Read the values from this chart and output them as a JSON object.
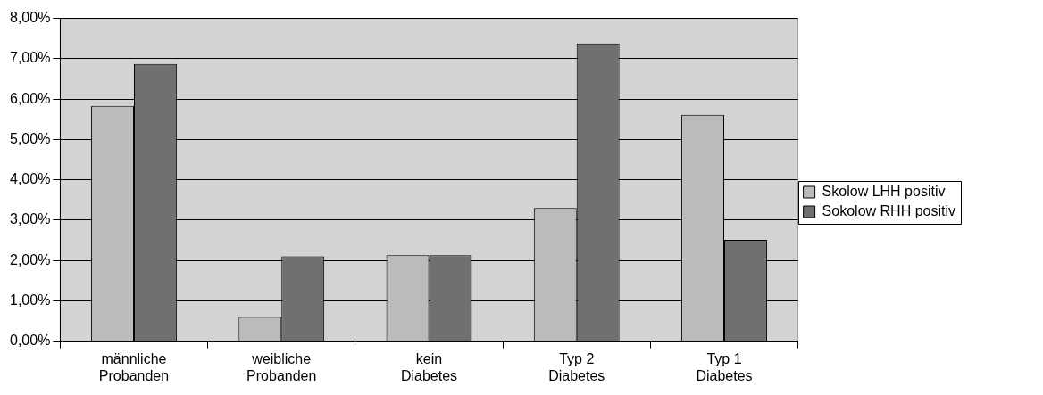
{
  "chart_data": {
    "type": "bar",
    "categories": [
      "männliche Probanden",
      "weibliche Probanden",
      "kein Diabetes",
      "Typ 2 Diabetes",
      "Typ 1 Diabetes"
    ],
    "series": [
      {
        "name": "Skolow LHH positiv",
        "color": "#bbbbbb",
        "values": [
          5.83,
          0.6,
          2.13,
          3.3,
          5.61
        ]
      },
      {
        "name": "Sokolow RHH positiv",
        "color": "#707070",
        "values": [
          6.87,
          2.1,
          2.13,
          7.38,
          2.51
        ]
      }
    ],
    "ylim": [
      0,
      8
    ],
    "yticks": [
      {
        "value": 0,
        "label": "0,00%"
      },
      {
        "value": 1,
        "label": "1,00%"
      },
      {
        "value": 2,
        "label": "2,00%"
      },
      {
        "value": 3,
        "label": "3,00%"
      },
      {
        "value": 4,
        "label": "4,00%"
      },
      {
        "value": 5,
        "label": "5,00%"
      },
      {
        "value": 6,
        "label": "6,00%"
      },
      {
        "value": 7,
        "label": "7,00%"
      },
      {
        "value": 8,
        "label": "8,00%"
      }
    ],
    "grid": "y",
    "legend": "right"
  }
}
